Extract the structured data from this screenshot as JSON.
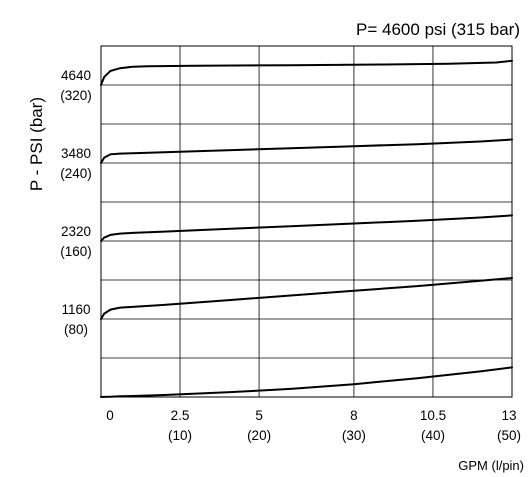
{
  "chart_data": {
    "type": "line",
    "title": "P= 4600 psi (315 bar)",
    "ylabel": "P - PSI (bar)",
    "xlabel": "GPM (l/pin)",
    "xlim": [
      0,
      13
    ],
    "ylim": [
      0,
      5220
    ],
    "grid": true,
    "x_ticks": [
      {
        "x": 0,
        "label": "0",
        "sub": ""
      },
      {
        "x": 2.5,
        "label": "2.5",
        "sub": "(10)"
      },
      {
        "x": 5,
        "label": "5",
        "sub": "(20)"
      },
      {
        "x": 8,
        "label": "8",
        "sub": "(30)"
      },
      {
        "x": 10.5,
        "label": "10.5",
        "sub": "(40)"
      },
      {
        "x": 13,
        "label": "13",
        "sub": "(50)"
      }
    ],
    "y_gridlines": [
      580,
      1160,
      1740,
      2320,
      2900,
      3480,
      4060,
      4640
    ],
    "y_ticks": [
      {
        "y": 1160,
        "label": "1160",
        "sub": "(80)"
      },
      {
        "y": 2320,
        "label": "2320",
        "sub": "(160)"
      },
      {
        "y": 3480,
        "label": "3480",
        "sub": "(240)"
      },
      {
        "y": 4640,
        "label": "4640",
        "sub": "(320)"
      }
    ],
    "series": [
      {
        "x": [
          0,
          0.1,
          0.3,
          0.6,
          1,
          2,
          4,
          6,
          8,
          10,
          12,
          13
        ],
        "y": [
          0,
          2,
          5,
          10,
          15,
          30,
          70,
          120,
          190,
          280,
          380,
          440
        ]
      },
      {
        "x": [
          0,
          0.1,
          0.3,
          0.6,
          1,
          2,
          4,
          6,
          8,
          10,
          12,
          13
        ],
        "y": [
          1160,
          1240,
          1300,
          1330,
          1340,
          1370,
          1440,
          1510,
          1580,
          1650,
          1730,
          1770
        ]
      },
      {
        "x": [
          0,
          0.1,
          0.3,
          0.6,
          1,
          2,
          4,
          6,
          8,
          10,
          12,
          13
        ],
        "y": [
          2320,
          2370,
          2410,
          2430,
          2440,
          2460,
          2500,
          2540,
          2580,
          2620,
          2670,
          2700
        ]
      },
      {
        "x": [
          0,
          0.1,
          0.3,
          0.6,
          1,
          2,
          4,
          6,
          8,
          10,
          12,
          13
        ],
        "y": [
          3480,
          3560,
          3610,
          3620,
          3625,
          3640,
          3670,
          3700,
          3730,
          3760,
          3800,
          3830
        ]
      },
      {
        "x": [
          0,
          0.1,
          0.3,
          0.6,
          1,
          1.5,
          3,
          6,
          9,
          11,
          12.5,
          13
        ],
        "y": [
          4640,
          4760,
          4850,
          4890,
          4910,
          4920,
          4925,
          4935,
          4945,
          4955,
          4975,
          5000
        ]
      }
    ]
  }
}
